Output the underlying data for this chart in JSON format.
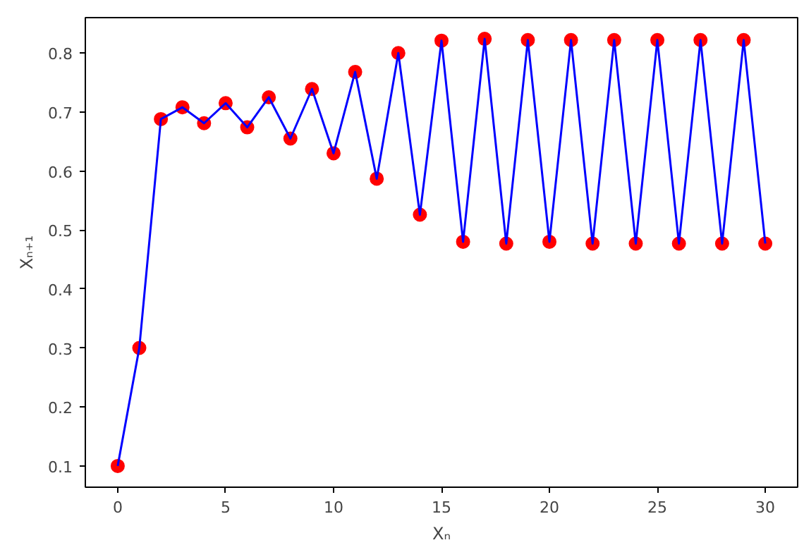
{
  "chart_data": {
    "type": "line",
    "xlabel": "Xₙ",
    "ylabel": "Xₙ₊₁",
    "x": [
      0,
      1,
      2,
      3,
      4,
      5,
      6,
      7,
      8,
      9,
      10,
      11,
      12,
      13,
      14,
      15,
      16,
      17,
      18,
      19,
      20,
      21,
      22,
      23,
      24,
      25,
      26,
      27,
      28,
      29,
      30
    ],
    "series": [
      {
        "type": "scatter",
        "color": "#ff0000",
        "marker": "circle",
        "values": [
          0.1,
          0.3,
          0.688,
          0.708,
          0.681,
          0.715,
          0.674,
          0.725,
          0.655,
          0.739,
          0.63,
          0.768,
          0.587,
          0.8,
          0.526,
          0.821,
          0.48,
          0.824,
          0.477,
          0.822,
          0.48,
          0.822,
          0.477,
          0.822,
          0.477,
          0.822,
          0.477,
          0.822,
          0.477,
          0.822,
          0.477
        ]
      },
      {
        "color": "#0000ff",
        "marker": "none",
        "values": [
          0.1,
          0.3,
          0.688,
          0.708,
          0.681,
          0.715,
          0.674,
          0.725,
          0.655,
          0.739,
          0.63,
          0.768,
          0.587,
          0.8,
          0.526,
          0.821,
          0.48,
          0.824,
          0.477,
          0.822,
          0.48,
          0.822,
          0.477,
          0.822,
          0.477,
          0.822,
          0.477,
          0.822,
          0.477,
          0.822,
          0.477
        ]
      }
    ],
    "xlim": [
      -1.5,
      31.5
    ],
    "ylim": [
      0.064,
      0.86
    ],
    "xticks": [
      0,
      5,
      10,
      15,
      20,
      25,
      30
    ],
    "yticks": [
      0.1,
      0.2,
      0.3,
      0.4,
      0.5,
      0.6,
      0.7,
      0.8
    ],
    "grid": false
  }
}
